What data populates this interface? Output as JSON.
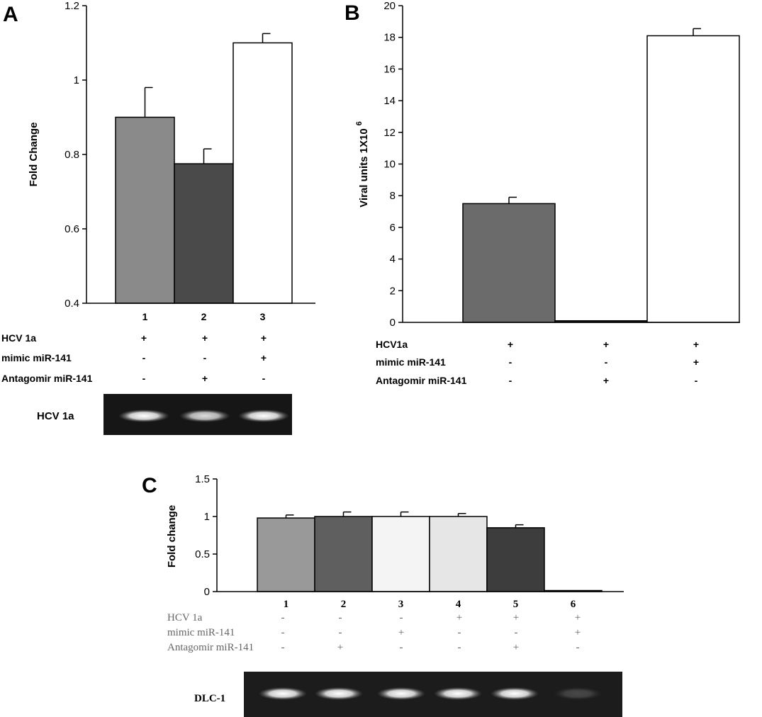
{
  "panels": {
    "a": {
      "letter": "A"
    },
    "b": {
      "letter": "B"
    },
    "c": {
      "letter": "C"
    }
  },
  "chart_data": [
    {
      "panel": "A",
      "type": "bar",
      "ylabel": "Fold Change",
      "ylim": [
        0.4,
        1.2
      ],
      "yticks": [
        "0.4",
        "0.6",
        "0.8",
        "1",
        "1.2"
      ],
      "categories": [
        "1",
        "2",
        "3"
      ],
      "values": [
        0.9,
        0.775,
        1.1
      ],
      "errors": [
        0.08,
        0.04,
        0.025
      ],
      "bar_colors": [
        "#8a8a8a",
        "#4a4a4a",
        "#ffffff"
      ],
      "conditions": [
        {
          "label": "HCV 1a",
          "signs": [
            "+",
            "+",
            "+"
          ]
        },
        {
          "label": "mimic miR-141",
          "signs": [
            "-",
            "-",
            "+"
          ]
        },
        {
          "label": "Antagomir miR-141",
          "signs": [
            "-",
            "+",
            "-"
          ]
        }
      ],
      "gel_label": "HCV 1a",
      "gel_bands": [
        1,
        0.85,
        1
      ]
    },
    {
      "panel": "B",
      "type": "bar",
      "ylabel": "Viral units 1X10",
      "ylabel_superscript": "6",
      "ylim": [
        0,
        20
      ],
      "yticks": [
        "0",
        "2",
        "4",
        "6",
        "8",
        "10",
        "12",
        "14",
        "16",
        "18",
        "20"
      ],
      "categories": [
        "",
        "",
        ""
      ],
      "values": [
        7.5,
        0.1,
        18.1
      ],
      "errors": [
        0.4,
        0,
        0.45
      ],
      "bar_colors": [
        "#6b6b6b",
        "#222222",
        "#ffffff"
      ],
      "conditions": [
        {
          "label": "HCV1a",
          "signs": [
            "+",
            "+",
            "+"
          ]
        },
        {
          "label": "mimic miR-141",
          "signs": [
            "-",
            "-",
            "+"
          ]
        },
        {
          "label": "Antagomir miR-141",
          "signs": [
            "-",
            "+",
            "-"
          ]
        }
      ]
    },
    {
      "panel": "C",
      "type": "bar",
      "ylabel": "Fold change",
      "ylim": [
        0,
        1.5
      ],
      "yticks": [
        "0",
        "0.5",
        "1",
        "1.5"
      ],
      "categories": [
        "1",
        "2",
        "3",
        "4",
        "5",
        "6"
      ],
      "values": [
        0.98,
        1.0,
        1.0,
        1.0,
        0.85,
        0.0
      ],
      "errors": [
        0.04,
        0.06,
        0.06,
        0.04,
        0.04,
        0
      ],
      "bar_colors": [
        "#999999",
        "#5f5f5f",
        "#f4f4f4",
        "#e6e6e6",
        "#3d3d3d",
        "#ffffff"
      ],
      "conditions": [
        {
          "label": "HCV 1a",
          "signs": [
            "-",
            "-",
            "-",
            "+",
            "+",
            "+"
          ]
        },
        {
          "label": "mimic miR-141",
          "signs": [
            "-",
            "-",
            "+",
            "-",
            "-",
            "+"
          ]
        },
        {
          "label": "Antagomir miR-141",
          "signs": [
            "-",
            "+",
            "-",
            "-",
            "+",
            "-"
          ]
        }
      ],
      "gel_label": "DLC-1",
      "gel_bands": [
        1,
        1,
        1,
        1,
        1,
        0.2
      ]
    }
  ]
}
